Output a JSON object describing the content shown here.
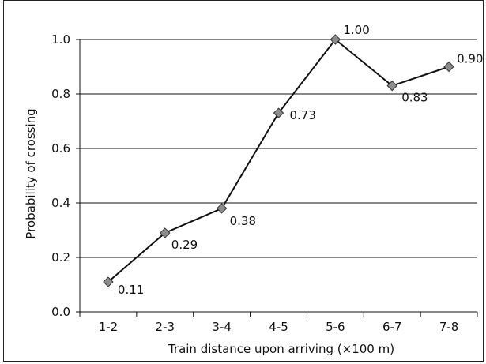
{
  "chart_data": {
    "type": "line",
    "title": "",
    "xlabel": "Train distance upon arriving (×100 m)",
    "ylabel": "Probability of crossing",
    "categories": [
      "1-2",
      "2-3",
      "3-4",
      "4-5",
      "5-6",
      "6-7",
      "7-8"
    ],
    "series": [
      {
        "values": [
          0.11,
          0.29,
          0.38,
          0.73,
          1.0,
          0.83,
          0.9
        ],
        "labels": [
          "0.11",
          "0.29",
          "0.38",
          "0.73",
          "1.00",
          "0.83",
          "0.90"
        ]
      }
    ],
    "yticks": [
      "0.0",
      "0.2",
      "0.4",
      "0.6",
      "0.8",
      "1.0"
    ],
    "ylim": [
      0,
      1
    ],
    "grid": "horizontal",
    "legend": "none",
    "colors": {
      "line": "#111111",
      "marker_fill": "#8c8c8c",
      "marker_stroke": "#333333",
      "grid": "#111111"
    }
  }
}
